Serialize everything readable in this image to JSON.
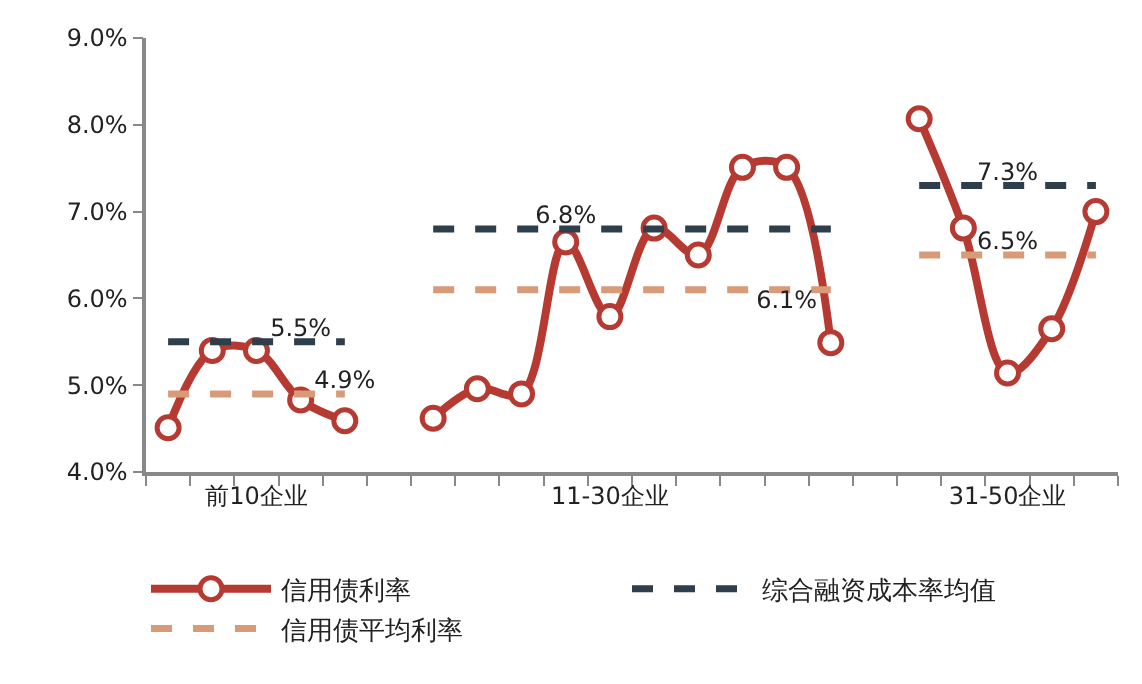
{
  "chart_data": {
    "type": "line",
    "categories": [
      null,
      null,
      "前10企业",
      null,
      null,
      null,
      null,
      null,
      null,
      null,
      "11-30企业",
      null,
      null,
      null,
      null,
      null,
      null,
      null,
      null,
      "31-50企业",
      null,
      null
    ],
    "series": [
      {
        "name": "信用债利率",
        "color": "#b73a32",
        "marker": "circle",
        "line_style": "solid",
        "values": [
          4.51,
          5.4,
          5.4,
          4.83,
          4.59,
          null,
          4.62,
          4.96,
          4.9,
          6.65,
          5.79,
          6.81,
          6.5,
          7.51,
          7.51,
          5.49,
          null,
          8.07,
          6.81,
          5.14,
          5.65,
          7.0
        ]
      },
      {
        "name": "综合融资成本率均值",
        "color": "#2e3e4a",
        "marker": "none",
        "line_style": "dashed",
        "values": [
          5.5,
          5.5,
          5.5,
          5.5,
          5.5,
          null,
          6.8,
          6.8,
          6.8,
          6.8,
          6.8,
          6.8,
          6.8,
          6.8,
          6.8,
          6.8,
          null,
          7.3,
          7.3,
          7.3,
          7.3,
          7.3
        ],
        "value_labels": [
          null,
          null,
          null,
          "5.5%",
          null,
          null,
          null,
          null,
          null,
          "6.8%",
          null,
          null,
          null,
          null,
          null,
          null,
          null,
          null,
          null,
          "7.3%",
          null,
          null
        ]
      },
      {
        "name": "信用债平均利率",
        "color": "#d99a78",
        "marker": "none",
        "line_style": "dashed",
        "values": [
          4.9,
          4.9,
          4.9,
          4.9,
          4.9,
          null,
          6.1,
          6.1,
          6.1,
          6.1,
          6.1,
          6.1,
          6.1,
          6.1,
          6.1,
          6.1,
          null,
          6.5,
          6.5,
          6.5,
          6.5,
          6.5
        ],
        "value_labels": [
          null,
          null,
          null,
          null,
          "4.9%",
          null,
          null,
          null,
          null,
          null,
          null,
          null,
          null,
          null,
          "6.1%",
          null,
          null,
          null,
          null,
          "6.5%",
          null,
          null
        ]
      }
    ],
    "ylim": [
      4.0,
      9.0
    ],
    "yticks": [
      {
        "value": 4.0,
        "label": "4.0%"
      },
      {
        "value": 5.0,
        "label": "5.0%"
      },
      {
        "value": 6.0,
        "label": "6.0%"
      },
      {
        "value": 7.0,
        "label": "7.0%"
      },
      {
        "value": 8.0,
        "label": "8.0%"
      },
      {
        "value": 9.0,
        "label": "9.0%"
      }
    ],
    "legend": "bottom"
  }
}
